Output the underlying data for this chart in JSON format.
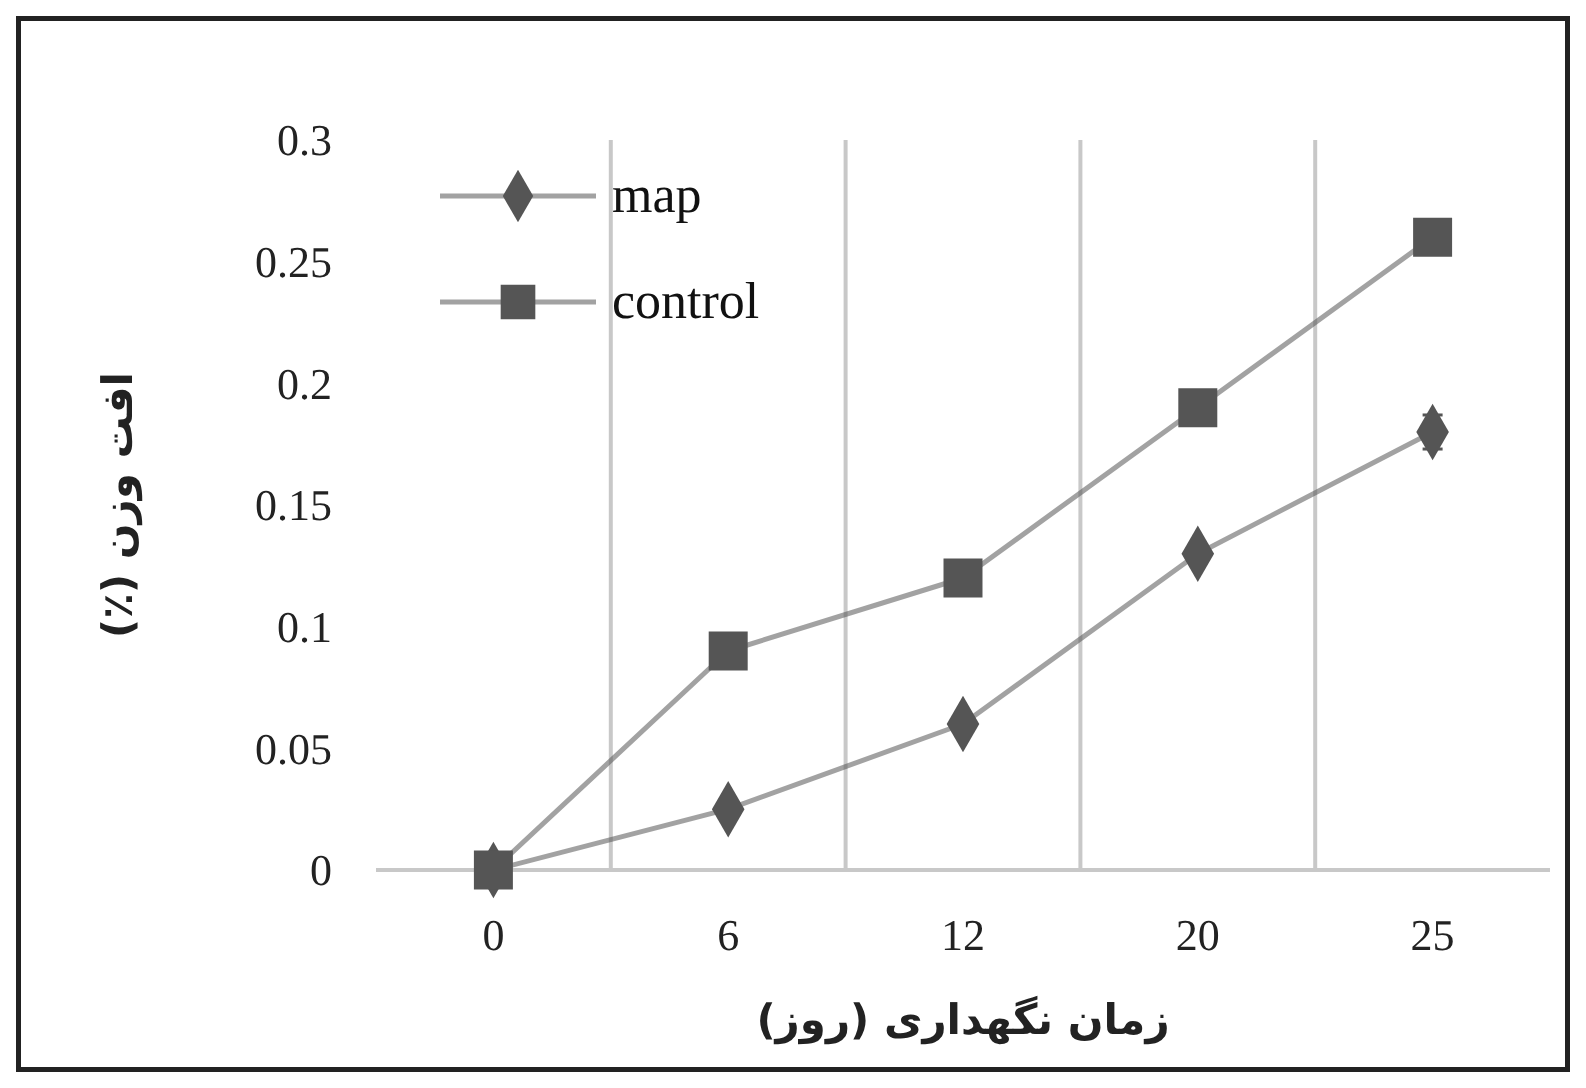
{
  "chart_data": {
    "type": "line",
    "xlabel": "زمان نگهداری (روز)",
    "ylabel": "افت وزن (٪)",
    "categories": [
      "0",
      "6",
      "12",
      "20",
      "25"
    ],
    "series": [
      {
        "name": "map",
        "color": "#555555",
        "marker": "diamond",
        "values": [
          0,
          0.025,
          0.06,
          0.13,
          0.18
        ],
        "errors": [
          null,
          null,
          null,
          null,
          0.007
        ]
      },
      {
        "name": "control",
        "color": "#555555",
        "marker": "square",
        "values": [
          0,
          0.09,
          0.12,
          0.19,
          0.26
        ],
        "errors": [
          null,
          null,
          null,
          null,
          0.006
        ]
      }
    ],
    "ylim": [
      0,
      0.3
    ],
    "yticks": [
      0,
      0.05,
      0.1,
      0.15,
      0.2,
      0.25,
      0.3
    ],
    "grid": "x",
    "legend": "top left"
  }
}
